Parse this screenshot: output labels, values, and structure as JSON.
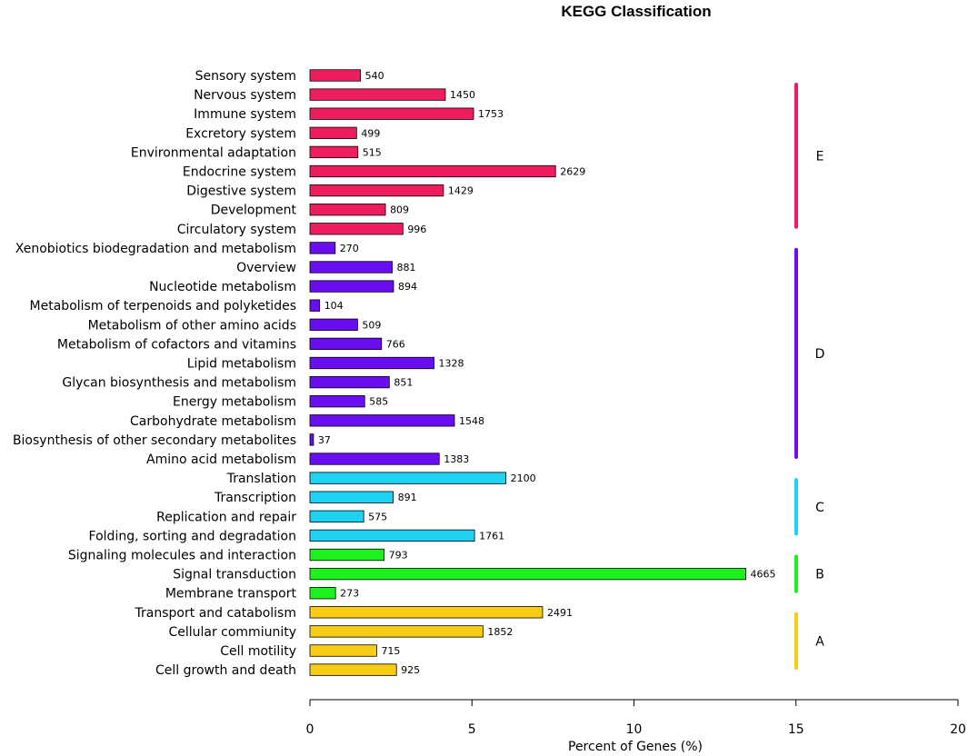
{
  "chart_data": {
    "type": "bar",
    "orientation": "horizontal",
    "title": "KEGG Classification",
    "xlabel": "Percent of Genes (%)",
    "ylabel": "",
    "xlim": [
      0,
      20
    ],
    "xticks": [
      0,
      5,
      10,
      15,
      20
    ],
    "xtick_labels": [
      "0",
      "5",
      "10",
      "15",
      "20"
    ],
    "grid": false,
    "groups": [
      {
        "name": "E",
        "color": "#ee1e5e",
        "categories": [
          "Sensory system",
          "Nervous system",
          "Immune system",
          "Excretory system",
          "Environmental adaptation",
          "Endocrine system",
          "Digestive system",
          "Development",
          "Circulatory system"
        ]
      },
      {
        "name": "D",
        "color": "#6a0ef2",
        "categories": [
          "Xenobiotics biodegradation and metabolism",
          "Overview",
          "Nucleotide metabolism",
          "Metabolism of terpenoids and polyketides",
          "Metabolism of other amino acids",
          "Metabolism of cofactors and vitamins",
          "Lipid metabolism",
          "Glycan biosynthesis and metabolism",
          "Energy metabolism",
          "Carbohydrate metabolism",
          "Biosynthesis of other secondary metabolites",
          "Amino acid metabolism"
        ]
      },
      {
        "name": "C",
        "color": "#1ed2f2",
        "categories": [
          "Translation",
          "Transcription",
          "Replication and repair",
          "Folding, sorting and degradation"
        ]
      },
      {
        "name": "B",
        "color": "#1ef21e",
        "categories": [
          "Signaling molecules and interaction",
          "Signal transduction",
          "Membrane transport"
        ]
      },
      {
        "name": "A",
        "color": "#f8cc14",
        "categories": [
          "Transport and catabolism",
          "Cellular commiunity",
          "Cell motility",
          "Cell growth and death"
        ]
      }
    ],
    "bars": [
      {
        "category": "Sensory system",
        "count": "540",
        "percent": 1.56,
        "group": "E"
      },
      {
        "category": "Nervous system",
        "count": "1450",
        "percent": 4.18,
        "group": "E"
      },
      {
        "category": "Immune system",
        "count": "1753",
        "percent": 5.05,
        "group": "E"
      },
      {
        "category": "Excretory system",
        "count": "499",
        "percent": 1.44,
        "group": "E"
      },
      {
        "category": "Environmental adaptation",
        "count": "515",
        "percent": 1.48,
        "group": "E"
      },
      {
        "category": "Endocrine system",
        "count": "2629",
        "percent": 7.58,
        "group": "E"
      },
      {
        "category": "Digestive system",
        "count": "1429",
        "percent": 4.12,
        "group": "E"
      },
      {
        "category": "Development",
        "count": "809",
        "percent": 2.33,
        "group": "E"
      },
      {
        "category": "Circulatory system",
        "count": "996",
        "percent": 2.87,
        "group": "E"
      },
      {
        "category": "Xenobiotics biodegradation and metabolism",
        "count": "270",
        "percent": 0.78,
        "group": "D"
      },
      {
        "category": "Overview",
        "count": "881",
        "percent": 2.54,
        "group": "D"
      },
      {
        "category": "Nucleotide metabolism",
        "count": "894",
        "percent": 2.58,
        "group": "D"
      },
      {
        "category": "Metabolism of terpenoids and polyketides",
        "count": "104",
        "percent": 0.3,
        "group": "D"
      },
      {
        "category": "Metabolism of other amino acids",
        "count": "509",
        "percent": 1.47,
        "group": "D"
      },
      {
        "category": "Metabolism of cofactors and vitamins",
        "count": "766",
        "percent": 2.21,
        "group": "D"
      },
      {
        "category": "Lipid metabolism",
        "count": "1328",
        "percent": 3.83,
        "group": "D"
      },
      {
        "category": "Glycan biosynthesis and metabolism",
        "count": "851",
        "percent": 2.45,
        "group": "D"
      },
      {
        "category": "Energy metabolism",
        "count": "585",
        "percent": 1.69,
        "group": "D"
      },
      {
        "category": "Carbohydrate metabolism",
        "count": "1548",
        "percent": 4.46,
        "group": "D"
      },
      {
        "category": "Biosynthesis of other secondary metabolites",
        "count": "37",
        "percent": 0.11,
        "group": "D"
      },
      {
        "category": "Amino acid metabolism",
        "count": "1383",
        "percent": 3.99,
        "group": "D"
      },
      {
        "category": "Translation",
        "count": "2100",
        "percent": 6.05,
        "group": "C"
      },
      {
        "category": "Transcription",
        "count": "891",
        "percent": 2.57,
        "group": "C"
      },
      {
        "category": "Replication and repair",
        "count": "575",
        "percent": 1.66,
        "group": "C"
      },
      {
        "category": "Folding, sorting and degradation",
        "count": "1761",
        "percent": 5.08,
        "group": "C"
      },
      {
        "category": "Signaling molecules and interaction",
        "count": "793",
        "percent": 2.29,
        "group": "B"
      },
      {
        "category": "Signal transduction",
        "count": "4665",
        "percent": 13.45,
        "group": "B"
      },
      {
        "category": "Membrane transport",
        "count": "273",
        "percent": 0.79,
        "group": "B"
      },
      {
        "category": "Transport and catabolism",
        "count": "2491",
        "percent": 7.18,
        "group": "A"
      },
      {
        "category": "Cellular commiunity",
        "count": "1852",
        "percent": 5.34,
        "group": "A"
      },
      {
        "category": "Cell motility",
        "count": "715",
        "percent": 2.06,
        "group": "A"
      },
      {
        "category": "Cell growth and death",
        "count": "925",
        "percent": 2.67,
        "group": "A"
      }
    ]
  }
}
